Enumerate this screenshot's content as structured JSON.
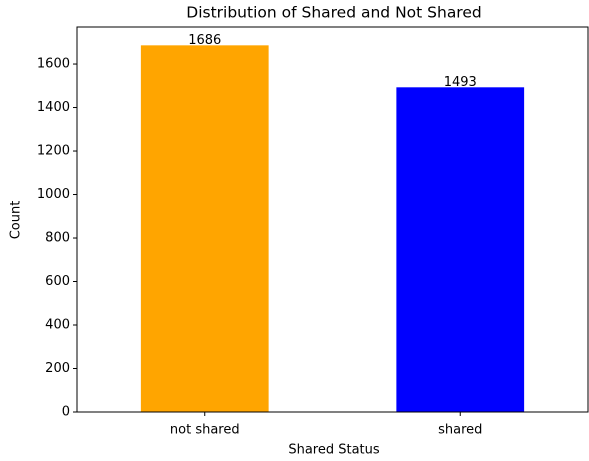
{
  "chart_data": {
    "type": "bar",
    "title": "Distribution of Shared and Not Shared",
    "x_label": "Shared Status",
    "y_label": "Count",
    "categories": [
      "not shared",
      "shared"
    ],
    "values": [
      1686,
      1493
    ],
    "colors": [
      "#ffa500",
      "#0000ff"
    ],
    "ylim": [
      0,
      1770.3
    ],
    "yticks": [
      0,
      200,
      400,
      600,
      800,
      1000,
      1200,
      1400,
      1600
    ]
  }
}
